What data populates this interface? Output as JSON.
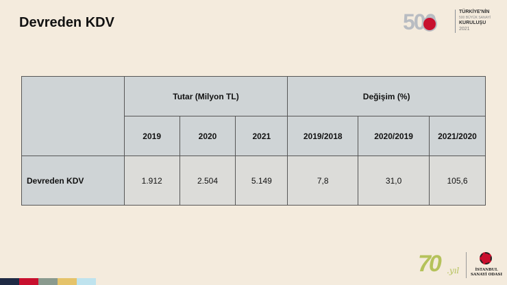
{
  "page": {
    "title": "Devreden KDV"
  },
  "brand_top": {
    "numeral": "500",
    "line1": "TÜRKİYE'NİN",
    "line2": "500 BÜYÜK SANAYİ",
    "line3": "KURULUŞU",
    "year": "2021"
  },
  "table": {
    "group_headers": [
      "Tutar (Milyon TL)",
      "Değişim (%)"
    ],
    "sub_headers": [
      "2019",
      "2020",
      "2021",
      "2019/2018",
      "2020/2019",
      "2021/2020"
    ],
    "rows": [
      {
        "label": "Devreden KDV",
        "values": [
          "1.912",
          "2.504",
          "5.149",
          "7,8",
          "31,0",
          "105,6"
        ]
      }
    ]
  },
  "brand_bottom": {
    "anniversary_number": "70",
    "anniversary_suffix": ".yıl",
    "org_line1": "İSTANBUL",
    "org_line2": "SANAYİ ODASI"
  },
  "footer_strip_colors": [
    "#1f2a44",
    "#c8102e",
    "#8a9a8e",
    "#e5c36a",
    "#bfe3ee"
  ]
}
